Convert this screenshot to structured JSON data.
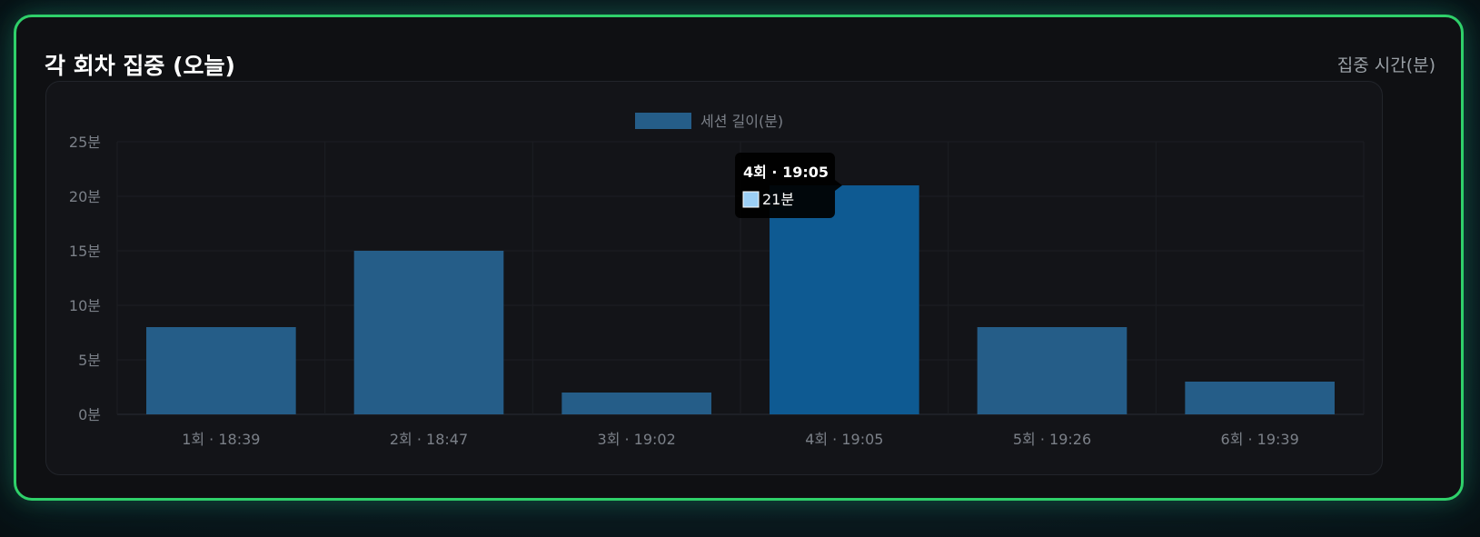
{
  "card": {
    "title": "각 회차 집중 (오늘)",
    "unit_label": "집중 시간(분)",
    "border_color": "#2fd06a"
  },
  "chart_data": {
    "type": "bar",
    "categories": [
      "1회 · 18:39",
      "2회 · 18:47",
      "3회 · 19:02",
      "4회 · 19:05",
      "5회 · 19:26",
      "6회 · 19:39"
    ],
    "series": [
      {
        "name": "세션 길이(분)",
        "values": [
          8,
          15,
          2,
          21,
          8,
          3
        ]
      }
    ],
    "ylim": [
      0,
      25
    ],
    "yticks": [
      0,
      5,
      10,
      15,
      20,
      25
    ],
    "ytick_suffix": "분",
    "grid": true,
    "legend_position": "top-center",
    "bar_color": "#255d88",
    "highlight_color": "#0e5a92",
    "highlight_index": 3,
    "tooltip": {
      "title": "4회 · 19:05",
      "value_label": "21분",
      "swatch_color": "#9ccff5"
    }
  }
}
